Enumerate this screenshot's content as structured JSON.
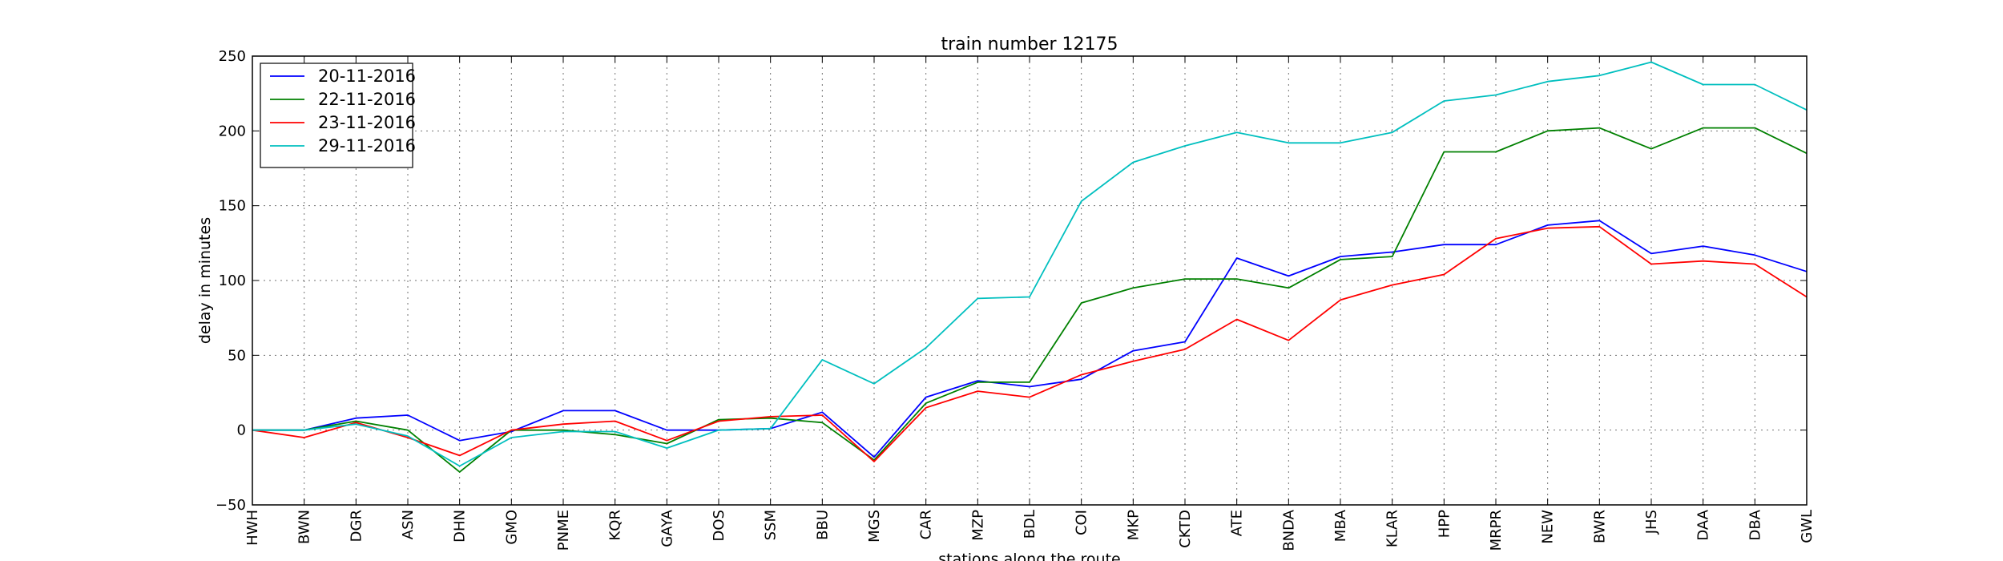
{
  "chart_data": {
    "type": "line",
    "title": "train number 12175",
    "xlabel": "stations along the route",
    "ylabel": "delay in minutes",
    "ylim": [
      -50,
      250
    ],
    "yticks": [
      -50,
      0,
      50,
      100,
      150,
      200,
      250
    ],
    "grid": true,
    "legend_position": "top-left",
    "categories": [
      "HWH",
      "BWN",
      "DGR",
      "ASN",
      "DHN",
      "GMO",
      "PNME",
      "KQR",
      "GAYA",
      "DOS",
      "SSM",
      "BBU",
      "MGS",
      "CAR",
      "MZP",
      "BDL",
      "COI",
      "MKP",
      "CKTD",
      "ATE",
      "BNDA",
      "MBA",
      "KLAR",
      "HPP",
      "MRPR",
      "NEW",
      "BWR",
      "JHS",
      "DAA",
      "DBA",
      "GWL"
    ],
    "series": [
      {
        "name": "20-11-2016",
        "color": "#0000ff",
        "values": [
          0,
          0,
          8,
          10,
          -7,
          -1,
          13,
          13,
          0,
          0,
          1,
          12,
          -18,
          22,
          33,
          29,
          34,
          53,
          59,
          115,
          103,
          116,
          119,
          124,
          124,
          137,
          140,
          118,
          123,
          117,
          106
        ]
      },
      {
        "name": "22-11-2016",
        "color": "#008000",
        "values": [
          0,
          0,
          6,
          0,
          -28,
          0,
          0,
          -3,
          -9,
          7,
          8,
          5,
          -20,
          18,
          32,
          32,
          85,
          95,
          101,
          101,
          95,
          114,
          116,
          186,
          186,
          200,
          202,
          188,
          202,
          202,
          185
        ]
      },
      {
        "name": "23-11-2016",
        "color": "#ff0000",
        "values": [
          0,
          -5,
          5,
          -5,
          -17,
          0,
          4,
          6,
          -7,
          6,
          9,
          10,
          -21,
          15,
          26,
          22,
          37,
          46,
          54,
          74,
          60,
          87,
          97,
          104,
          128,
          135,
          136,
          111,
          113,
          111,
          89
        ]
      },
      {
        "name": "29-11-2016",
        "color": "#00bfbf",
        "values": [
          0,
          0,
          4,
          -4,
          -24,
          -5,
          -1,
          -1,
          -12,
          0,
          1,
          47,
          31,
          55,
          88,
          89,
          153,
          179,
          190,
          199,
          192,
          192,
          199,
          220,
          224,
          233,
          237,
          246,
          231,
          231,
          214
        ]
      }
    ]
  }
}
